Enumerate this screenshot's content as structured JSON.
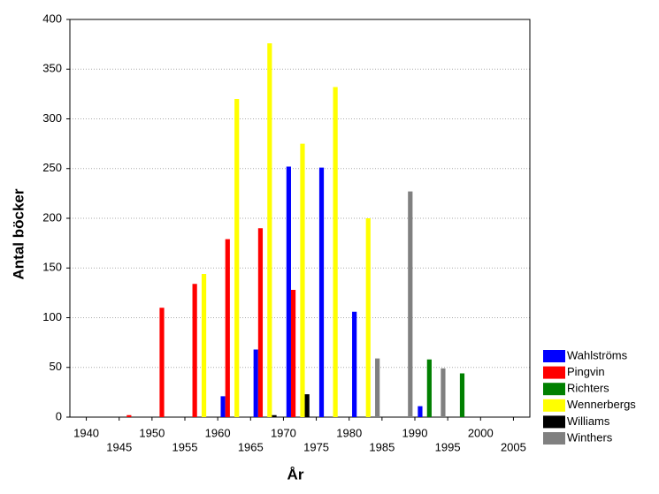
{
  "chart_data": {
    "type": "bar",
    "x": [
      1945,
      1950,
      1955,
      1960,
      1965,
      1970,
      1975,
      1980,
      1985,
      1990,
      1995
    ],
    "series": [
      {
        "name": "Wahlströms",
        "color": "#0000ff",
        "values": [
          null,
          null,
          null,
          21,
          68,
          252,
          251,
          106,
          null,
          11,
          null
        ]
      },
      {
        "name": "Pingvin",
        "color": "#ff0000",
        "values": [
          2,
          110,
          134,
          179,
          190,
          128,
          null,
          null,
          null,
          null,
          null
        ]
      },
      {
        "name": "Richters",
        "color": "#008000",
        "values": [
          null,
          null,
          null,
          null,
          null,
          null,
          null,
          null,
          null,
          58,
          44
        ]
      },
      {
        "name": "Wennerbergs",
        "color": "#ffff00",
        "values": [
          null,
          null,
          144,
          320,
          376,
          275,
          332,
          200,
          null,
          null,
          null
        ]
      },
      {
        "name": "Williams",
        "color": "#000000",
        "values": [
          null,
          null,
          null,
          null,
          2,
          23,
          null,
          null,
          null,
          null,
          null
        ]
      },
      {
        "name": "Winthers",
        "color": "#808080",
        "values": [
          null,
          null,
          null,
          null,
          null,
          null,
          null,
          59,
          227,
          49,
          null
        ]
      }
    ],
    "x_label": "År",
    "y_label": "Antal böcker",
    "xlim": [
      1937.5,
      2007.5
    ],
    "xticks": [
      1940,
      1945,
      1950,
      1955,
      1960,
      1965,
      1970,
      1975,
      1980,
      1985,
      1990,
      1995,
      2000,
      2005
    ],
    "ylim": [
      0,
      400
    ],
    "yticks": [
      0,
      50,
      100,
      150,
      200,
      250,
      300,
      350,
      400
    ],
    "grid": true
  }
}
